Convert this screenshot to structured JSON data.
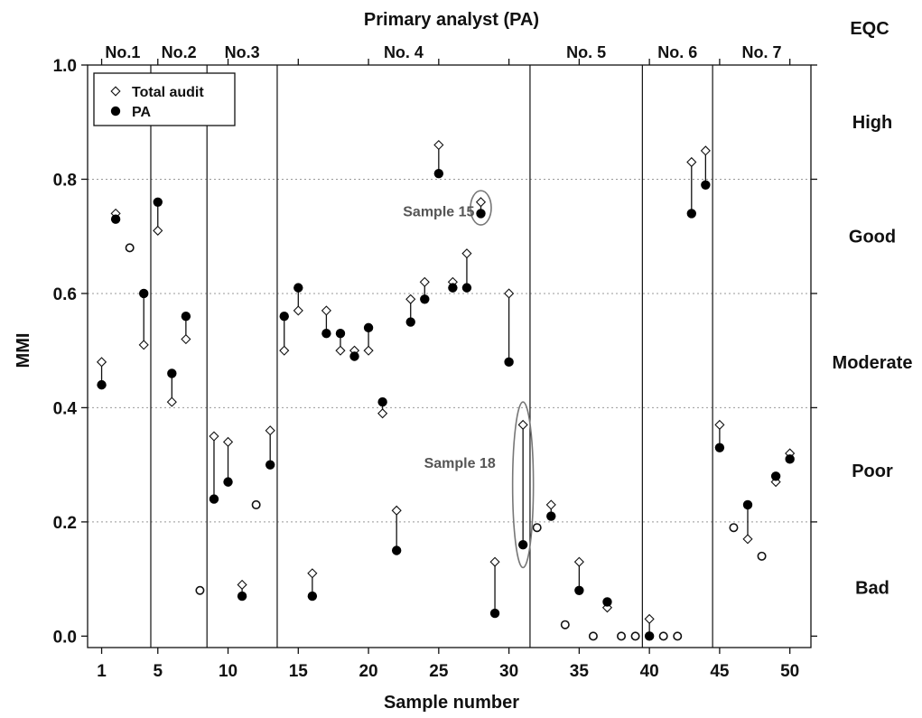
{
  "chart_data": {
    "type": "scatter",
    "top_title": "Primary analyst (PA)",
    "xlabel": "Sample number",
    "ylabel": "MMI",
    "xlim": [
      0,
      51.5
    ],
    "ylim": [
      -0.02,
      1.0
    ],
    "xticks": [
      1,
      5,
      10,
      15,
      20,
      25,
      30,
      35,
      40,
      45,
      50
    ],
    "yticks": [
      0.0,
      0.2,
      0.4,
      0.6,
      0.8,
      1.0
    ],
    "ytick_labels": [
      "0.0",
      "0.2",
      "0.4",
      "0.6",
      "0.8",
      "1.0"
    ],
    "grid": {
      "y": true,
      "style": "dotted",
      "at": [
        0.2,
        0.4,
        0.6,
        0.8
      ]
    },
    "legend": {
      "placement": "top-left"
    },
    "series": [
      {
        "name": "Total audit",
        "marker": "diamond-open",
        "points": [
          [
            1,
            0.48
          ],
          [
            2,
            0.74
          ],
          [
            3,
            0.68
          ],
          [
            4,
            0.51
          ],
          [
            5,
            0.71
          ],
          [
            6,
            0.41
          ],
          [
            7,
            0.52
          ],
          [
            8,
            0.08
          ],
          [
            9,
            0.35
          ],
          [
            10,
            0.34
          ],
          [
            11,
            0.09
          ],
          [
            12,
            0.23
          ],
          [
            13,
            0.36
          ],
          [
            14,
            0.5
          ],
          [
            15,
            0.57
          ],
          [
            16,
            0.11
          ],
          [
            17,
            0.57
          ],
          [
            18,
            0.5
          ],
          [
            19,
            0.5
          ],
          [
            20,
            0.5
          ],
          [
            21,
            0.39
          ],
          [
            22,
            0.22
          ],
          [
            23,
            0.59
          ],
          [
            24,
            0.62
          ],
          [
            25,
            0.86
          ],
          [
            26,
            0.62
          ],
          [
            27,
            0.67
          ],
          [
            28,
            0.76
          ],
          [
            29,
            0.13
          ],
          [
            30,
            0.6
          ],
          [
            31,
            0.37
          ],
          [
            32,
            0.19
          ],
          [
            33,
            0.23
          ],
          [
            34,
            0.02
          ],
          [
            35,
            0.13
          ],
          [
            36,
            0.0
          ],
          [
            37,
            0.05
          ],
          [
            38,
            0.0
          ],
          [
            39,
            0.0
          ],
          [
            40,
            0.03
          ],
          [
            41,
            0.0
          ],
          [
            42,
            0.0
          ],
          [
            43,
            0.83
          ],
          [
            44,
            0.85
          ],
          [
            45,
            0.37
          ],
          [
            46,
            0.19
          ],
          [
            47,
            0.17
          ],
          [
            48,
            0.14
          ],
          [
            49,
            0.27
          ],
          [
            50,
            0.32
          ]
        ]
      },
      {
        "name": "PA",
        "marker": "circle-filled",
        "points": [
          [
            1,
            0.44
          ],
          [
            2,
            0.73
          ],
          [
            3,
            0.68
          ],
          [
            4,
            0.6
          ],
          [
            5,
            0.76
          ],
          [
            6,
            0.46
          ],
          [
            7,
            0.56
          ],
          [
            8,
            0.08
          ],
          [
            9,
            0.24
          ],
          [
            10,
            0.27
          ],
          [
            11,
            0.07
          ],
          [
            12,
            0.23
          ],
          [
            13,
            0.3
          ],
          [
            14,
            0.56
          ],
          [
            15,
            0.61
          ],
          [
            16,
            0.07
          ],
          [
            17,
            0.53
          ],
          [
            18,
            0.53
          ],
          [
            19,
            0.49
          ],
          [
            20,
            0.54
          ],
          [
            21,
            0.41
          ],
          [
            22,
            0.15
          ],
          [
            23,
            0.55
          ],
          [
            24,
            0.59
          ],
          [
            25,
            0.81
          ],
          [
            26,
            0.61
          ],
          [
            27,
            0.61
          ],
          [
            28,
            0.74
          ],
          [
            29,
            0.04
          ],
          [
            30,
            0.48
          ],
          [
            31,
            0.16
          ],
          [
            32,
            0.19
          ],
          [
            33,
            0.21
          ],
          [
            34,
            0.02
          ],
          [
            35,
            0.08
          ],
          [
            36,
            0.0
          ],
          [
            37,
            0.06
          ],
          [
            38,
            0.0
          ],
          [
            39,
            0.0
          ],
          [
            40,
            0.0
          ],
          [
            41,
            0.0
          ],
          [
            42,
            0.0
          ],
          [
            43,
            0.74
          ],
          [
            44,
            0.79
          ],
          [
            45,
            0.33
          ],
          [
            46,
            0.19
          ],
          [
            47,
            0.23
          ],
          [
            48,
            0.14
          ],
          [
            49,
            0.28
          ],
          [
            50,
            0.31
          ]
        ]
      }
    ],
    "group_dividers_x": [
      4.5,
      8.5,
      13.5,
      31.5,
      39.5,
      44.5
    ],
    "groups": [
      {
        "label": "No.1",
        "x_center": 2.5
      },
      {
        "label": "No.2",
        "x_center": 6.5
      },
      {
        "label": "No.3",
        "x_center": 11.0
      },
      {
        "label": "No. 4",
        "x_center": 22.5
      },
      {
        "label": "No. 5",
        "x_center": 35.5
      },
      {
        "label": "No. 6",
        "x_center": 42.0
      },
      {
        "label": "No. 7",
        "x_center": 48.0
      }
    ],
    "eqc_title": "EQC",
    "eqc_classes": [
      {
        "label": "High",
        "y_center": 0.9
      },
      {
        "label": "Good",
        "y_center": 0.7
      },
      {
        "label": "Moderate",
        "y_center": 0.48
      },
      {
        "label": "Poor",
        "y_center": 0.29
      },
      {
        "label": "Bad",
        "y_center": 0.085
      }
    ],
    "annotations": [
      {
        "text": "Sample 15",
        "target_x": 28,
        "ellipse_y": [
          0.72,
          0.78
        ],
        "label_x": 25.0,
        "label_y": 0.735
      },
      {
        "text": "Sample 18",
        "target_x": 31,
        "ellipse_y": [
          0.12,
          0.41
        ],
        "label_x": 26.5,
        "label_y": 0.295
      }
    ]
  }
}
